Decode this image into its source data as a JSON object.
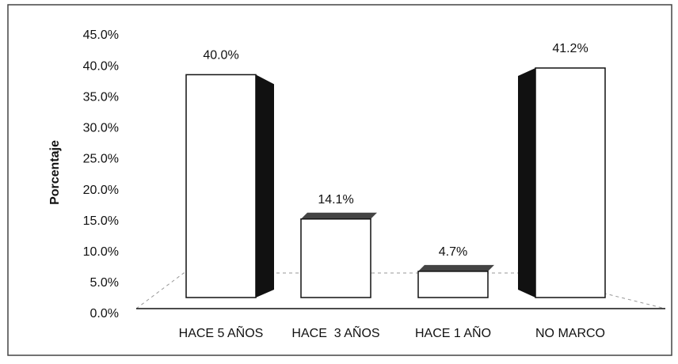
{
  "chart_data": {
    "type": "bar3d",
    "y_label": "Porcentaje",
    "categories": [
      "HACE 5 AÑOS",
      "HACE  3 AÑOS",
      "HACE 1 AÑO",
      "NO MARCO"
    ],
    "values": [
      40.0,
      14.1,
      4.7,
      41.2
    ],
    "value_labels": [
      "40.0%",
      "14.1%",
      "4.7%",
      "41.2%"
    ],
    "color": "#ffffff",
    "side_color": "#111111",
    "ylim": [
      0,
      45
    ],
    "yticks": [
      {
        "value": 0,
        "label": "0.0%"
      },
      {
        "value": 5,
        "label": "5.0%"
      },
      {
        "value": 10,
        "label": "10.0%"
      },
      {
        "value": 15,
        "label": "15.0%"
      },
      {
        "value": 20,
        "label": "20.0%"
      },
      {
        "value": 25,
        "label": "25.0%"
      },
      {
        "value": 30,
        "label": "30.0%"
      },
      {
        "value": 35,
        "label": "35.0%"
      },
      {
        "value": 40,
        "label": "40.0%"
      },
      {
        "value": 45,
        "label": "45.0%"
      }
    ],
    "grid": false
  }
}
